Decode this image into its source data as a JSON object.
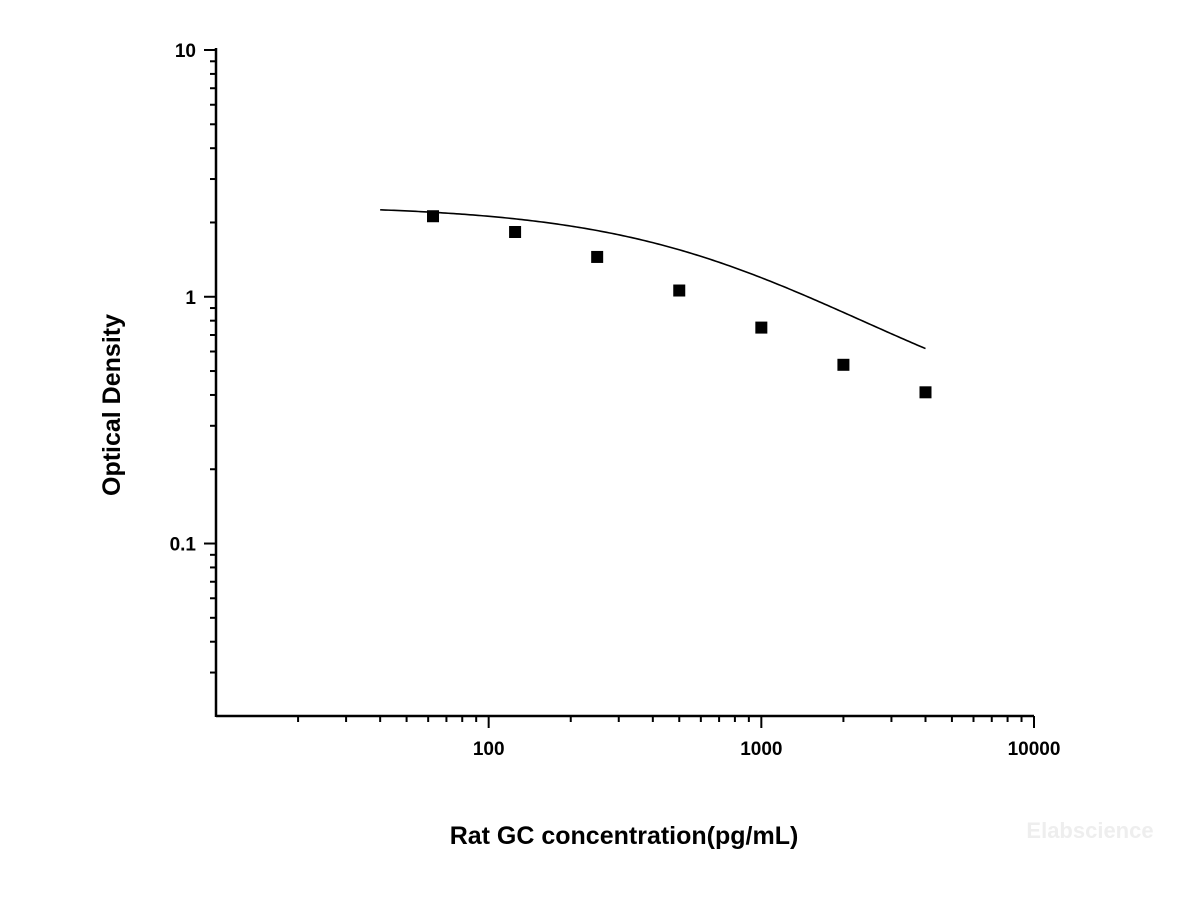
{
  "chart_data": {
    "type": "scatter",
    "xlabel": "Rat GC concentration(pg/mL)",
    "ylabel": "Optical Density",
    "x_scale": "log",
    "y_scale": "log",
    "xlim": [
      10,
      10000
    ],
    "ylim": [
      0.02,
      10
    ],
    "x_tick_labels": [
      "100",
      "1000",
      "10000"
    ],
    "y_tick_labels": [
      "0.1",
      "1",
      "10"
    ],
    "grid": false,
    "legend": "none",
    "series": [
      {
        "marker": "square",
        "color": "#000000",
        "x": [
          62.5,
          125,
          250,
          500,
          1000,
          2000,
          4000
        ],
        "y": [
          2.12,
          1.83,
          1.45,
          1.06,
          0.75,
          0.53,
          0.41
        ]
      }
    ],
    "fit_curve": {
      "type": "four-parameter logistic",
      "color": "#000000",
      "x_range": [
        40,
        4000
      ],
      "params": {
        "A1": 2.35,
        "A2": 0.27,
        "x0": 800,
        "p": 1.0
      }
    },
    "watermark": "Elabscience"
  }
}
